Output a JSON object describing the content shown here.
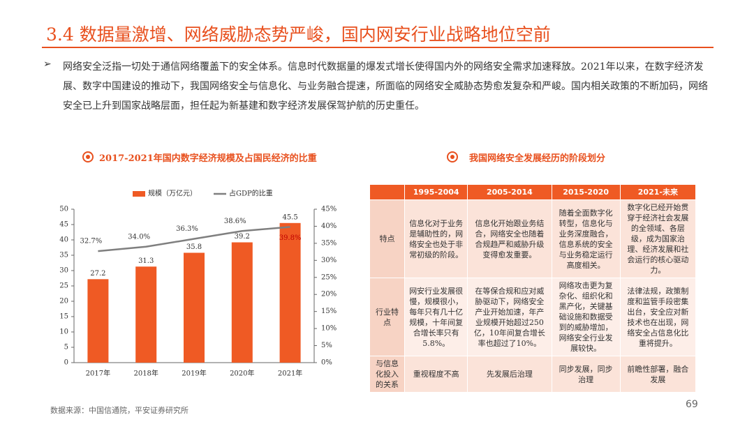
{
  "header": {
    "title": "3.4 数据量激增、网络威胁态势严峻，国内网安行业战略地位空前"
  },
  "bullet": "网络安全泛指一切处于通信网络覆盖下的安全体系。信息时代数据量的爆发式增长使得国内外的网络安全需求加速释放。2021年以来，在数字经济发展、数字中国建设的推动下，我国网络安全与信息化、与业务融合提速，所面临的网络安全威胁态势愈发复杂和严峻。国内相关政策的不断加码，网络安全已上升到国家战略层面，担任起为新基建和数字经济发展保驾护航的历史重任。",
  "chart_data": {
    "type": "bar",
    "title": "2017-2021年国内数字经济规模及占国民经济的比重",
    "categories": [
      "2017年",
      "2018年",
      "2019年",
      "2020年",
      "2021年"
    ],
    "series": [
      {
        "name": "规模（万亿元）",
        "color": "#ef5a24",
        "values": [
          27.2,
          31.3,
          35.8,
          39.2,
          45.5
        ]
      },
      {
        "name": "占GDP的比重",
        "color": "#7f7f7f",
        "type": "line",
        "axis": "y2",
        "values": [
          32.7,
          34.0,
          36.3,
          38.6,
          39.8
        ],
        "value_labels": [
          "32.7%",
          "34.0%",
          "36.3%",
          "38.6%",
          "39.8%"
        ]
      }
    ],
    "ylim": [
      0,
      50
    ],
    "yticks": [
      0,
      5,
      10,
      15,
      20,
      25,
      30,
      35,
      40,
      45,
      50
    ],
    "y2lim": [
      0,
      45
    ],
    "y2ticks": [
      {
        "value": 0,
        "label": "0%"
      },
      {
        "value": 5,
        "label": "5%"
      },
      {
        "value": 10,
        "label": "10%"
      },
      {
        "value": 15,
        "label": "15%"
      },
      {
        "value": 20,
        "label": "20%"
      },
      {
        "value": 25,
        "label": "25%"
      },
      {
        "value": 30,
        "label": "30%"
      },
      {
        "value": 35,
        "label": "35%"
      },
      {
        "value": 40,
        "label": "40%"
      },
      {
        "value": 45,
        "label": "45%"
      }
    ],
    "legend": "top"
  },
  "table": {
    "title": "我国网络安全发展经历的阶段划分",
    "header": [
      "1995-2004",
      "2005-2014",
      "2015-2020",
      "2021-未来"
    ],
    "rows": [
      {
        "label": "特点",
        "cells": [
          "信息化对于业务是辅助性的，网络安全也处于非常初级的阶段。",
          "信息化开始跟业务结合，网络安全也随着合规趋严和威胁升级变得愈发重要。",
          "随着全面数字化转型，信息化与业务深度融合，信息系统的安全与业务稳定运行高度相关。",
          "数字化已经开始贯穿于经济社会发展的全领域、各层级，成为国家治理、经济发展和社会运行的核心驱动力。"
        ]
      },
      {
        "label": "行业特点",
        "cells": [
          "网安行业发展很慢，规模很小，每年只有几十亿规模，十年间复合增长率只有5.8%。",
          "在等保合规和应对威胁驱动下，网络安全产业开始加速，年产业规模开始超过250亿，10年间复合增长率也超过了10%。",
          "网络攻击更为复杂化、组织化和黑产化，关键基础设施和数据受到的威胁增加，网络安全行业发展较快。",
          "法律法规，政策制度和监管手段密集出台，安全应对新技术也在出现，网络安全占信息化比重将提升。"
        ]
      },
      {
        "label": "与信息化投入的关系",
        "cells": [
          "重视程度不高",
          "先发展后治理",
          "同步发展，同步治理",
          "前瞻性部署，融合发展"
        ]
      }
    ]
  },
  "source": "数据来源：中国信通院，平安证券研究所",
  "page_number": "69"
}
